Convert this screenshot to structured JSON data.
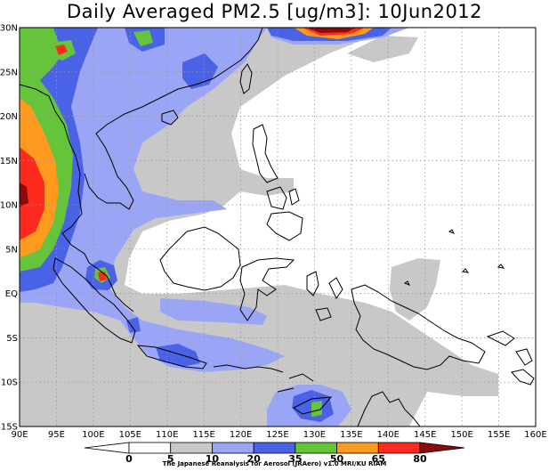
{
  "title": "Daily Averaged PM2.5 [ug/m3]: 10Jun2012",
  "credit": "The Japanese Reanalysis for Aerosol (JRAero) v1.0 MRI/KU RIAM",
  "map": {
    "lon_min": 90,
    "lon_max": 160,
    "lat_min": -15,
    "lat_max": 30,
    "lon_ticks": [
      "90E",
      "95E",
      "100E",
      "105E",
      "110E",
      "115E",
      "120E",
      "125E",
      "130E",
      "135E",
      "140E",
      "145E",
      "150E",
      "155E",
      "160E"
    ],
    "lat_ticks": [
      "30N",
      "25N",
      "20N",
      "15N",
      "10N",
      "5N",
      "EQ",
      "5S",
      "10S",
      "15S"
    ],
    "grid": "dotted"
  },
  "colorbar": {
    "levels": [
      "0",
      "5",
      "10",
      "20",
      "35",
      "50",
      "65",
      "80"
    ],
    "colors": [
      "#ffffff",
      "#ffffff",
      "#c8c8c8",
      "#9ba5f5",
      "#4a63e6",
      "#66c43a",
      "#ff9a1e",
      "#ff2a1e",
      "#8c0a0a"
    ]
  }
}
